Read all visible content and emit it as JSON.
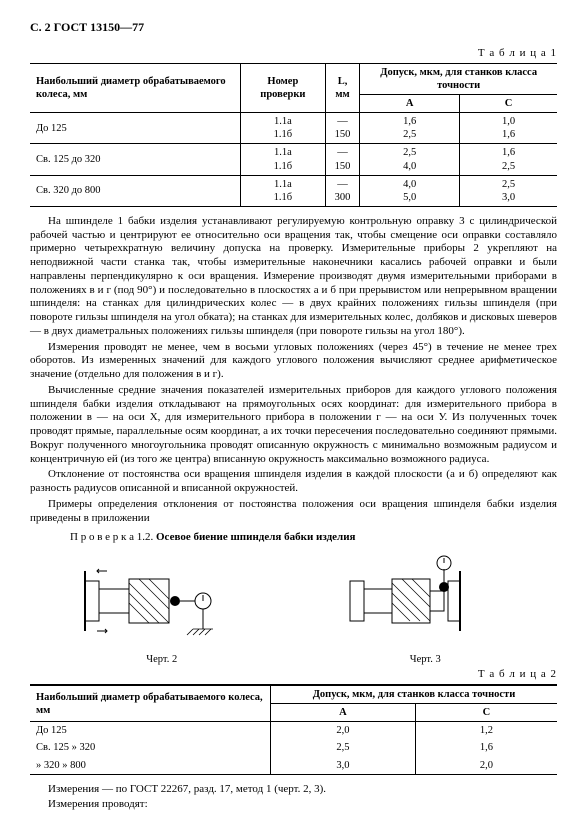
{
  "header": "С. 2 ГОСТ 13150—77",
  "table1": {
    "label": "Т а б л и ц а  1",
    "head": {
      "c1": "Наибольший диаметр обрабатываемого колеса, мм",
      "c2": "Номер проверки",
      "c3": "L, мм",
      "c4": "Допуск, мкм, для станков класса точности",
      "c4a": "А",
      "c4b": "С"
    },
    "rows": [
      {
        "d": "До 125",
        "n1": "1.1а",
        "n2": "1.1б",
        "l1": "—",
        "l2": "150",
        "a1": "1,6",
        "a2": "2,5",
        "c1": "1,0",
        "c2": "1,6"
      },
      {
        "d": "Св. 125 до 320",
        "n1": "1.1а",
        "n2": "1.1б",
        "l1": "—",
        "l2": "150",
        "a1": "2,5",
        "a2": "4,0",
        "c1": "1,6",
        "c2": "2,5"
      },
      {
        "d": "Св. 320 до 800",
        "n1": "1.1а",
        "n2": "1.1б",
        "l1": "—",
        "l2": "300",
        "a1": "4,0",
        "a2": "5,0",
        "c1": "2,5",
        "c2": "3,0"
      }
    ]
  },
  "para1": "На шпинделе 1 бабки изделия устанавливают регулируемую контрольную оправку 3 с цилиндрической рабочей частью и центрируют ее относительно оси вращения так, чтобы смещение оси оправки составляло примерно четырехкратную величину допуска на проверку. Измерительные приборы 2 укрепляют на неподвижной части станка так, чтобы измерительные наконечники касались рабочей оправки и были направлены перпендикулярно к оси вращения. Измерение производят двумя измерительными приборами в положениях в и г (под 90°) и последовательно в плоскостях а и б при прерывистом или непрерывном вращении шпинделя: на станках для цилиндрических колес — в двух крайних положениях гильзы шпинделя (при повороте гильзы шпинделя на угол обката); на станках для измерительных колес, долбяков и дисковых шеверов — в двух диаметральных положениях гильзы шпинделя (при повороте гильзы на угол 180°).",
  "para2": "Измерения проводят не менее, чем в восьми угловых положениях (через 45°) в течение не менее трех оборотов. Из измеренных значений для каждого углового положения вычисляют среднее арифметическое значение (отдельно для положения в и г).",
  "para3": "Вычисленные средние значения показателей измерительных приборов для каждого углового положения шпинделя бабки изделия откладывают на прямоугольных осях координат: для измерительного прибора в положении в — на оси Х, для измерительного прибора в положении г — на оси У. Из полученных точек проводят прямые, параллельные осям координат, а их точки пересечения последовательно соединяют прямыми. Вокруг полученного многоугольника проводят описанную окружность с минимально возможным радиусом и концентричную ей (из того же центра) вписанную окружность максимально возможного радиуса.",
  "para4": "Отклонение от постоянства оси вращения шпинделя изделия в каждой плоскости (а и б) определяют как разность радиусов описанной и вписанной окружностей.",
  "para5": "Примеры определения отклонения от постоянства положения оси вращения шпинделя бабки изделия приведены в приложении",
  "check12": {
    "prefix": "П р о в е р к а  1.2.",
    "title": "Осевое биение шпинделя бабки изделия"
  },
  "fig2_cap": "Черт. 2",
  "fig3_cap": "Черт. 3",
  "table2": {
    "label": "Т а б л и ц а  2",
    "head": {
      "c1": "Наибольший диаметр обрабатываемого колеса, мм",
      "c2": "Допуск, мкм, для станков класса точности",
      "c2a": "А",
      "c2b": "С"
    },
    "rows": [
      {
        "d": "До 125",
        "a": "2,0",
        "c": "1,2"
      },
      {
        "d": "Св. 125  »  320",
        "a": "2,5",
        "c": "1,6"
      },
      {
        "d": "»  320  »  800",
        "a": "3,0",
        "c": "2,0"
      }
    ]
  },
  "note1": "Измерения — по ГОСТ 22267, разд. 17, метод 1 (черт. 2, 3).",
  "note2": "Измерения проводят:"
}
